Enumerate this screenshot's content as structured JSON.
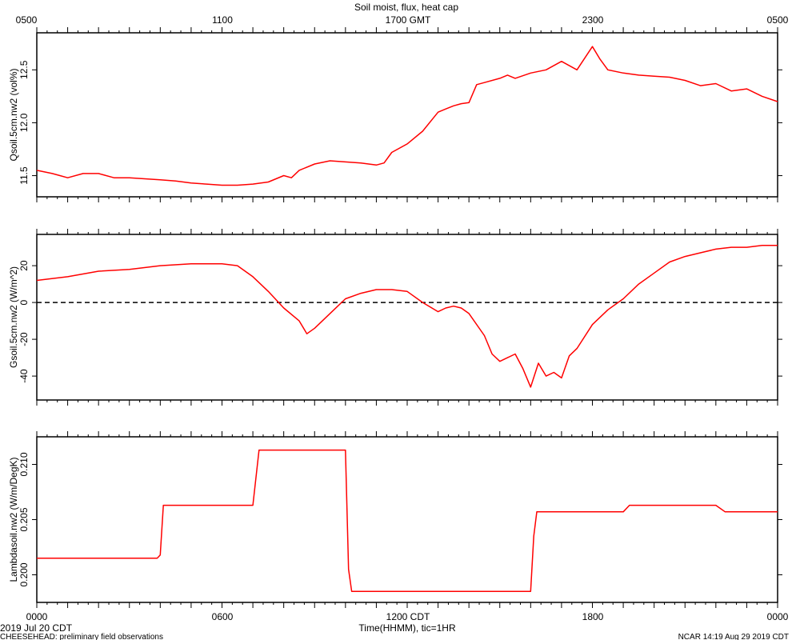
{
  "title": "Soil moist, flux, heat cap",
  "top_axis": {
    "ticks": [
      "0500",
      "1100",
      "1700 GMT",
      "2300",
      "0500"
    ]
  },
  "bottom_axis": {
    "ticks": [
      "0000",
      "0600",
      "1200 CDT",
      "1800",
      "0000"
    ],
    "label": "Time(HHMM), tic=1HR"
  },
  "footer": {
    "date": "2019 Jul 20 CDT",
    "project": "CHEESEHEAD: preliminary field observations",
    "credit": "NCAR 14:19 Aug 29 2019 CDT"
  },
  "colors": {
    "series": "#ff0000",
    "zero_line": "#000000"
  },
  "chart_data": [
    {
      "type": "line",
      "ylabel": "Qsoil.5cm.nw2 (vol%)",
      "ylim": [
        11.3,
        12.85
      ],
      "yticks": [
        "11.5",
        "12.0",
        "12.5"
      ],
      "ytick_values": [
        11.5,
        12.0,
        12.5
      ],
      "x_hours": [
        0,
        0.5,
        0.75,
        1,
        1.5,
        2,
        2.5,
        3,
        3.5,
        4,
        4.5,
        5,
        5.5,
        6,
        6.5,
        7,
        7.5,
        8,
        8.25,
        8.5,
        9,
        9.5,
        10,
        10.5,
        11,
        11.25,
        11.5,
        12,
        12.5,
        13,
        13.25,
        13.5,
        13.75,
        14,
        14.25,
        14.5,
        15,
        15.25,
        15.5,
        16,
        16.5,
        17,
        17.5,
        18,
        18.25,
        18.5,
        19,
        19.5,
        20,
        20.5,
        21,
        21.5,
        22,
        22.5,
        23,
        23.5,
        24
      ],
      "values": [
        11.55,
        11.52,
        11.5,
        11.48,
        11.52,
        11.52,
        11.48,
        11.48,
        11.47,
        11.46,
        11.45,
        11.43,
        11.42,
        11.41,
        11.41,
        11.42,
        11.44,
        11.5,
        11.48,
        11.55,
        11.61,
        11.64,
        11.63,
        11.62,
        11.6,
        11.62,
        11.72,
        11.8,
        11.92,
        12.1,
        12.13,
        12.16,
        12.18,
        12.19,
        12.36,
        12.38,
        12.42,
        12.45,
        12.42,
        12.47,
        12.5,
        12.58,
        12.5,
        12.72,
        12.6,
        12.5,
        12.47,
        12.45,
        12.44,
        12.43,
        12.4,
        12.35,
        12.37,
        12.3,
        12.32,
        12.25,
        12.2
      ],
      "series": [
        {
          "name": "Qsoil.5cm.nw2"
        }
      ]
    },
    {
      "type": "line",
      "ylabel": "Gsoil.5cm.nw2 (W/m^2)",
      "ylim": [
        -53,
        37
      ],
      "yticks": [
        "-40",
        "-20",
        "0",
        "20"
      ],
      "ytick_values": [
        -40,
        -20,
        0,
        20
      ],
      "zero_line": true,
      "x_hours": [
        0,
        1,
        2,
        3,
        4,
        5,
        6,
        6.5,
        7,
        7.5,
        8,
        8.5,
        8.75,
        9,
        9.5,
        10,
        10.5,
        11,
        11.5,
        12,
        12.5,
        13,
        13.25,
        13.5,
        13.75,
        14,
        14.5,
        14.75,
        15,
        15.25,
        15.5,
        15.75,
        16,
        16.25,
        16.5,
        16.75,
        17,
        17.25,
        17.5,
        18,
        18.5,
        19,
        19.5,
        20,
        20.5,
        21,
        21.5,
        22,
        22.5,
        23,
        23.5,
        24
      ],
      "values": [
        12,
        14,
        17,
        18,
        20,
        21,
        21,
        20,
        14,
        6,
        -3,
        -10,
        -17,
        -14,
        -6,
        2,
        5,
        7,
        7,
        6,
        0,
        -5,
        -3,
        -2,
        -3,
        -6,
        -18,
        -28,
        -32,
        -30,
        -28,
        -36,
        -46,
        -33,
        -40,
        -38,
        -41,
        -29,
        -25,
        -12,
        -4,
        2,
        10,
        16,
        22,
        25,
        27,
        29,
        30,
        30,
        31,
        31
      ],
      "series": [
        {
          "name": "Gsoil.5cm.nw2"
        }
      ]
    },
    {
      "type": "line",
      "ylabel": "Lambdasoil.nw2 (W/m/DegK)",
      "ylim": [
        0.1975,
        0.2125
      ],
      "yticks": [
        "0.200",
        "0.205",
        "0.210"
      ],
      "ytick_values": [
        0.2,
        0.205,
        0.21
      ],
      "x_hours": [
        0,
        3.9,
        4.0,
        4.1,
        7.0,
        7.2,
        10,
        10.1,
        10.2,
        16,
        16.1,
        16.2,
        19,
        19.2,
        22,
        22.3,
        24
      ],
      "values": [
        0.2015,
        0.2015,
        0.2018,
        0.2063,
        0.2063,
        0.2113,
        0.2113,
        0.2005,
        0.1985,
        0.1985,
        0.2035,
        0.2057,
        0.2057,
        0.2063,
        0.2063,
        0.2057,
        0.2057
      ],
      "series": [
        {
          "name": "Lambdasoil.nw2"
        }
      ]
    }
  ]
}
